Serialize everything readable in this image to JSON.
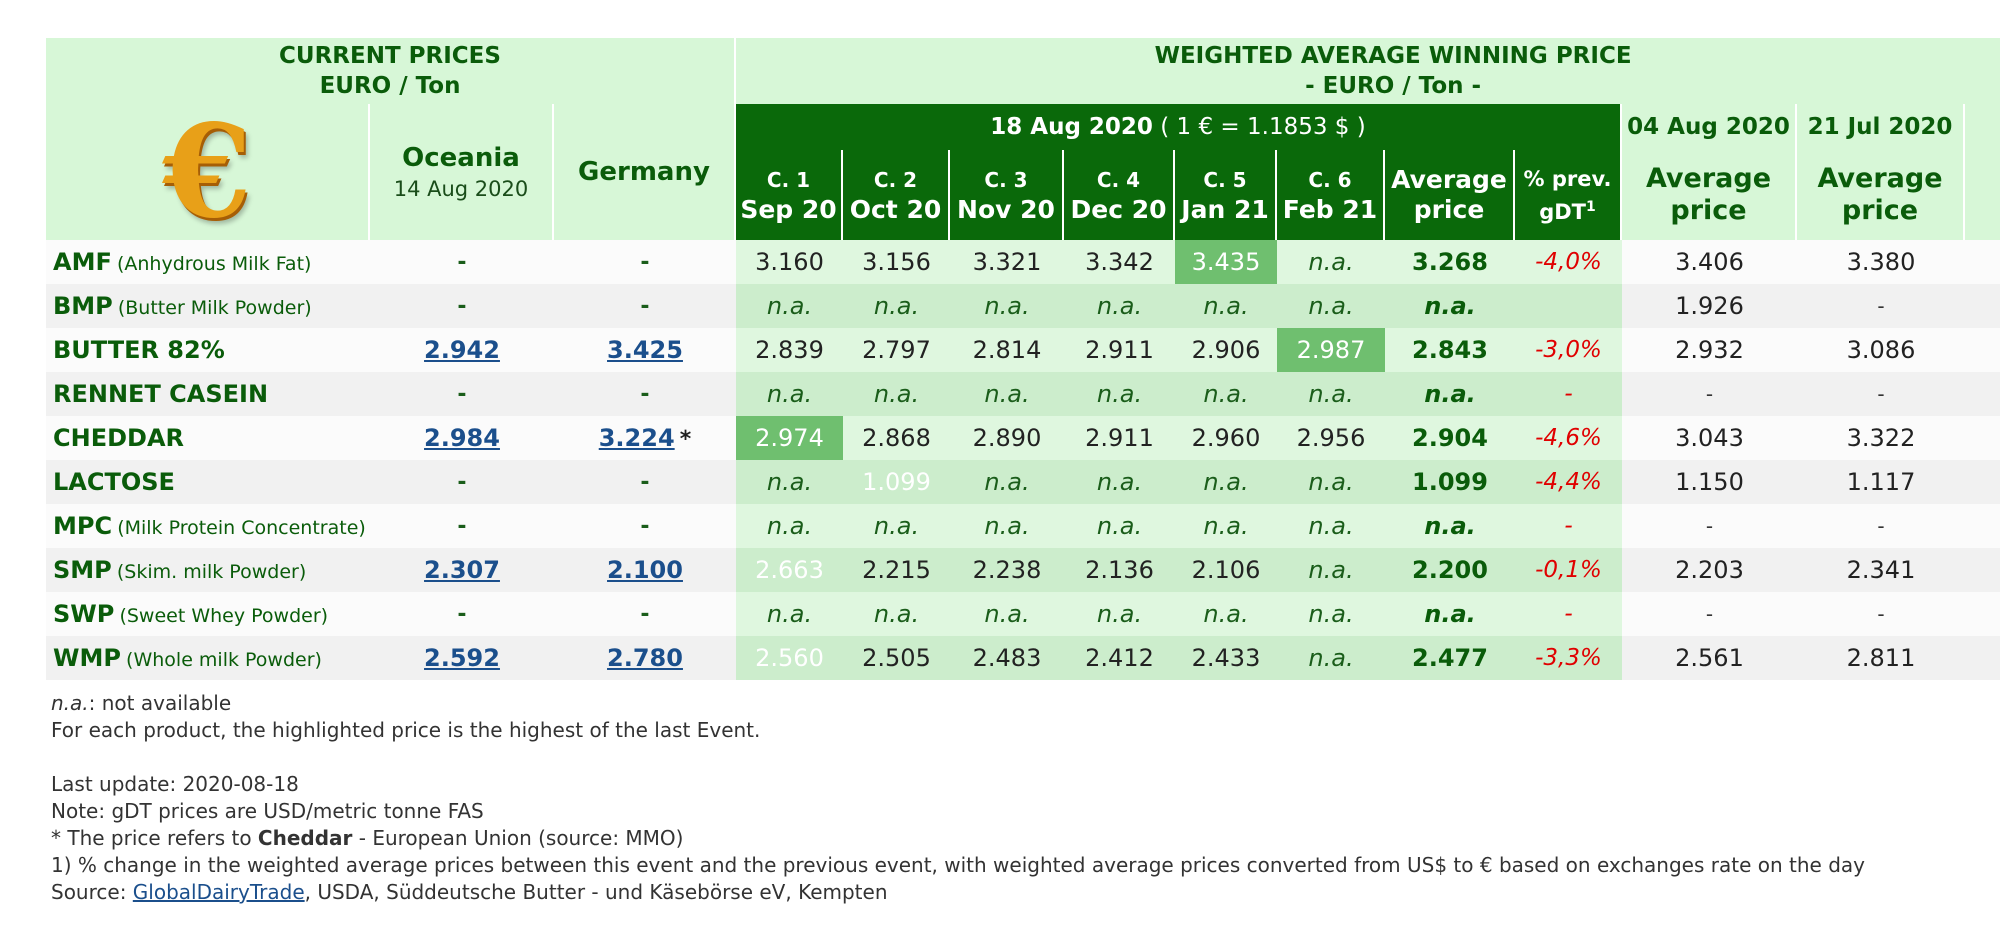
{
  "header": {
    "current_prices_line1": "CURRENT PRICES",
    "current_prices_line2": "EURO / Ton",
    "wawp_line1": "WEIGHTED AVERAGE WINNING PRICE",
    "wawp_line2": "- EURO / Ton -",
    "euro_symbol": "€",
    "oceania_label": "Oceania",
    "oceania_date": "14 Aug 2020",
    "germany_label": "Germany",
    "event_date": "18 Aug 2020",
    "event_rate": " ( 1 € = 1.1853 $ )",
    "prev_date_1": "04 Aug 2020",
    "prev_date_2": "21 Jul 2020",
    "contracts": [
      {
        "c": "C. 1",
        "m": "Sep 20"
      },
      {
        "c": "C. 2",
        "m": "Oct 20"
      },
      {
        "c": "C. 3",
        "m": "Nov 20"
      },
      {
        "c": "C. 4",
        "m": "Dec 20"
      },
      {
        "c": "C. 5",
        "m": "Jan 21"
      },
      {
        "c": "C. 6",
        "m": "Feb 21"
      }
    ],
    "average_l1": "Average",
    "average_l2": "price",
    "pct_l1": "% prev.",
    "pct_l2": "gDT",
    "pct_sup": "1",
    "prev_avg_l1": "Average",
    "prev_avg_l2": "price"
  },
  "rows": [
    {
      "code": "AMF",
      "full": "(Anhydrous Milk Fat)",
      "oceania": "-",
      "germany": "-",
      "germany_note": "",
      "c": [
        "3.160",
        "3.156",
        "3.321",
        "3.342",
        "3.435",
        "n.a."
      ],
      "hi": 4,
      "avg": "3.268",
      "pct": "-4,0%",
      "prev1": "3.406",
      "prev2": "3.380"
    },
    {
      "code": "BMP",
      "full": "(Butter Milk Powder)",
      "oceania": "-",
      "germany": "-",
      "germany_note": "",
      "c": [
        "n.a.",
        "n.a.",
        "n.a.",
        "n.a.",
        "n.a.",
        "n.a."
      ],
      "hi": -1,
      "avg": "n.a.",
      "pct": "",
      "prev1": "1.926",
      "prev2": "-"
    },
    {
      "code": "BUTTER 82%",
      "full": "",
      "oceania": "2.942",
      "germany": "3.425",
      "germany_note": "",
      "c": [
        "2.839",
        "2.797",
        "2.814",
        "2.911",
        "2.906",
        "2.987"
      ],
      "hi": 5,
      "avg": "2.843",
      "pct": "-3,0%",
      "prev1": "2.932",
      "prev2": "3.086"
    },
    {
      "code": "RENNET CASEIN",
      "full": "",
      "oceania": "-",
      "germany": "-",
      "germany_note": "",
      "c": [
        "n.a.",
        "n.a.",
        "n.a.",
        "n.a.",
        "n.a.",
        "n.a."
      ],
      "hi": -1,
      "avg": "n.a.",
      "pct": "-",
      "prev1": "-",
      "prev2": "-"
    },
    {
      "code": "CHEDDAR",
      "full": "",
      "oceania": "2.984",
      "germany": "3.224",
      "germany_note": "*",
      "c": [
        "2.974",
        "2.868",
        "2.890",
        "2.911",
        "2.960",
        "2.956"
      ],
      "hi": 0,
      "avg": "2.904",
      "pct": "-4,6%",
      "prev1": "3.043",
      "prev2": "3.322"
    },
    {
      "code": "LACTOSE",
      "full": "",
      "oceania": "-",
      "germany": "-",
      "germany_note": "",
      "c": [
        "n.a.",
        "1.099",
        "n.a.",
        "n.a.",
        "n.a.",
        "n.a."
      ],
      "hi": 1,
      "avg": "1.099",
      "pct": "-4,4%",
      "prev1": "1.150",
      "prev2": "1.117"
    },
    {
      "code": "MPC",
      "full": "(Milk Protein Concentrate)",
      "oceania": "-",
      "germany": "-",
      "germany_note": "",
      "c": [
        "n.a.",
        "n.a.",
        "n.a.",
        "n.a.",
        "n.a.",
        "n.a."
      ],
      "hi": -1,
      "avg": "n.a.",
      "pct": "-",
      "prev1": "-",
      "prev2": "-"
    },
    {
      "code": "SMP",
      "full": "(Skim. milk Powder)",
      "oceania": "2.307",
      "germany": "2.100",
      "germany_note": "",
      "c": [
        "2.663",
        "2.215",
        "2.238",
        "2.136",
        "2.106",
        "n.a."
      ],
      "hi": 0,
      "avg": "2.200",
      "pct": "-0,1%",
      "prev1": "2.203",
      "prev2": "2.341"
    },
    {
      "code": "SWP",
      "full": "(Sweet Whey Powder)",
      "oceania": "-",
      "germany": "-",
      "germany_note": "",
      "c": [
        "n.a.",
        "n.a.",
        "n.a.",
        "n.a.",
        "n.a.",
        "n.a."
      ],
      "hi": -1,
      "avg": "n.a.",
      "pct": "-",
      "prev1": "-",
      "prev2": "-"
    },
    {
      "code": "WMP",
      "full": "(Whole milk Powder)",
      "oceania": "2.592",
      "germany": "2.780",
      "germany_note": "",
      "c": [
        "2.560",
        "2.505",
        "2.483",
        "2.412",
        "2.433",
        "n.a."
      ],
      "hi": 0,
      "avg": "2.477",
      "pct": "-3,3%",
      "prev1": "2.561",
      "prev2": "2.811"
    }
  ],
  "notes": {
    "na_abbr": "n.a.",
    "na_text": ": not available",
    "highlight": "For each product, the highlighted price is the highest of the last Event.",
    "last_update": "Last update: 2020-08-18",
    "gdt_note": "Note: gDT prices are USD/metric tonne FAS",
    "star_prefix": "* The price refers to ",
    "star_bold": "Cheddar",
    "star_suffix": " - European Union (source: MMO)",
    "footnote1": "1) % change in the weighted average prices between this event and the previous event, with weighted average prices converted from US$ to € based on exchanges rate on the day",
    "source_prefix": "Source: ",
    "source_link": "GlobalDairyTrade",
    "source_suffix": ", USDA, Süddeutsche Butter - und Käsebörse eV, Kempten"
  },
  "colors": {
    "header_light": "#d7f7d7",
    "header_dark": "#0a690a",
    "highlight": "#6fbf6f",
    "negative": "#e00000",
    "link": "#1b4f8c"
  }
}
